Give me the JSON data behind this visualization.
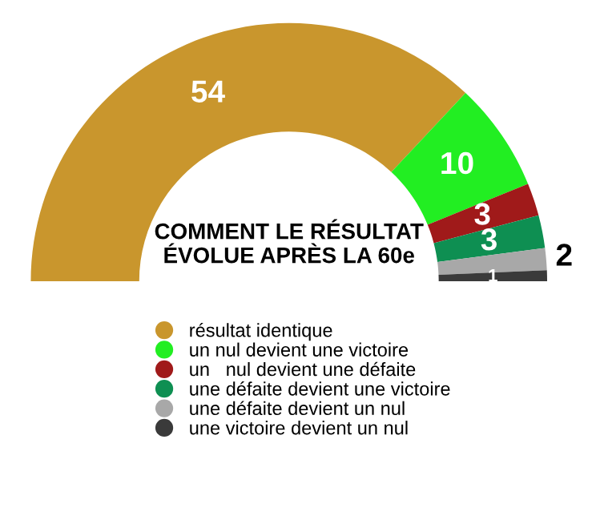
{
  "chart_data": {
    "type": "donut",
    "title": "COMMENT LE RÉSULTAT\nÉVOLUE APRÈS LA 60e",
    "categories": [
      "résultat identique",
      "un nul devient une victoire",
      "un   nul devient une défaite",
      "une défaite devient une victoire",
      "une défaite devient un nul",
      "une victoire devient un nul"
    ],
    "values": [
      54,
      10,
      3,
      3,
      2,
      1
    ],
    "colors": [
      "#c9962d",
      "#22ee22",
      "#a01a1a",
      "#0e8f52",
      "#a8a8a8",
      "#3a3a3a"
    ],
    "data_labels": true,
    "legend": "bottom"
  }
}
